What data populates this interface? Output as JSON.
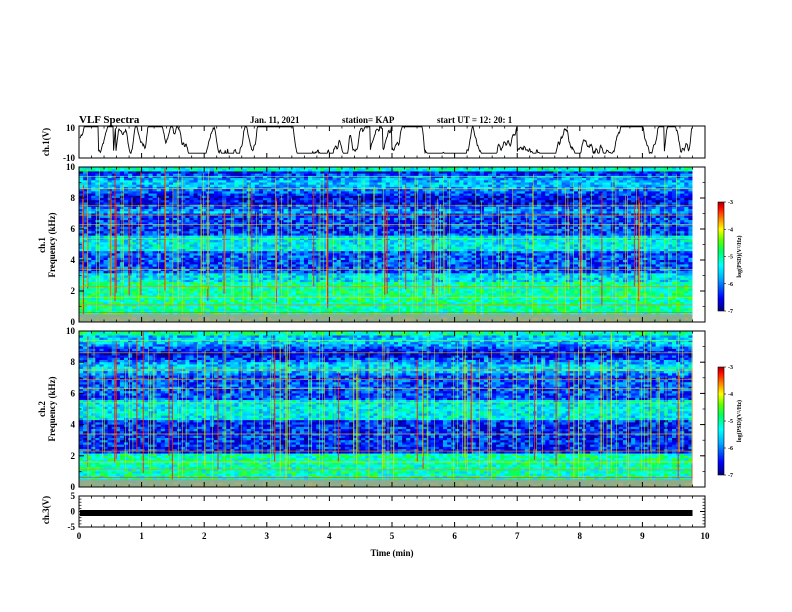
{
  "header": {
    "title": "VLF Spectra",
    "date": "Jan. 11, 2021",
    "station": "station= KAP",
    "start": "start UT =  12: 20: 1"
  },
  "colors": {
    "trace": "#000000",
    "colormap": [
      "#000080",
      "#0000ff",
      "#00b0ff",
      "#00ffff",
      "#00ff80",
      "#40ff00",
      "#ffff00",
      "#ff8000",
      "#ff0000",
      "#800000"
    ]
  },
  "colorbars": [
    {
      "label": "log(PSD)(V²/Hz)",
      "ticks": [
        "-3",
        "-4",
        "-5",
        "-6",
        "-7"
      ]
    },
    {
      "label": "log(PSD)(V²/Hz)",
      "ticks": [
        "-3",
        "-4",
        "-5",
        "-6",
        "-7"
      ]
    }
  ],
  "chart_data": [
    {
      "type": "line",
      "name": "ch1-waveform",
      "ylabel": "ch.1(V)",
      "ylim": [
        -10,
        10
      ],
      "yticks": [
        "10",
        "-10"
      ],
      "xlim": [
        0,
        10
      ],
      "note_values": "dense broadband waveform between about -7 and 10 V"
    },
    {
      "type": "heatmap",
      "name": "ch1-spectrogram",
      "ylabel": "ch.1 Frequency (kHz)",
      "ylim": [
        0,
        10
      ],
      "yticks": [
        "0",
        "2",
        "4",
        "6",
        "8",
        "10"
      ],
      "xlim": [
        0,
        10
      ],
      "clim": [
        -7,
        -3
      ]
    },
    {
      "type": "heatmap",
      "name": "ch2-spectrogram",
      "ylabel": "ch.2 Frequency (kHz)",
      "ylim": [
        0,
        10
      ],
      "yticks": [
        "0",
        "2",
        "4",
        "6",
        "8",
        "10"
      ],
      "xlim": [
        0,
        10
      ],
      "clim": [
        -7,
        -3
      ]
    },
    {
      "type": "line",
      "name": "ch3-waveform",
      "ylabel": "ch.3(V)",
      "ylim": [
        -5,
        5
      ],
      "yticks": [
        "5",
        "0",
        "-5"
      ],
      "xlim": [
        0,
        10
      ],
      "values_note": "near-constant trace around -0.5 V",
      "level": -0.5
    }
  ],
  "xaxis": {
    "label": "Time (min)",
    "ticks": [
      "0",
      "1",
      "2",
      "3",
      "4",
      "5",
      "6",
      "7",
      "8",
      "9",
      "10"
    ],
    "data_end": 9.8
  }
}
